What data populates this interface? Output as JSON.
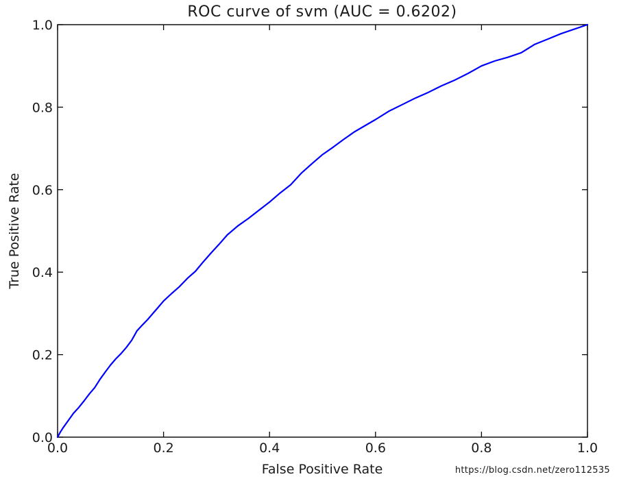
{
  "figure": {
    "title": "ROC curve of svm (AUC = 0.6202)",
    "xlabel": "False Positive Rate",
    "ylabel": "True Positive Rate",
    "watermark": "https://blog.csdn.net/zero112535"
  },
  "colors": {
    "curve": "#0000ff",
    "axis": "#000000",
    "text": "#1a1a1a",
    "watermark": "#e3e3e3",
    "background": "#ffffff"
  },
  "chart_data": {
    "type": "line",
    "title": "ROC curve of svm (AUC = 0.6202)",
    "model": "svm",
    "auc": 0.6202,
    "xlabel": "False Positive Rate",
    "ylabel": "True Positive Rate",
    "xlim": [
      0.0,
      1.0
    ],
    "ylim": [
      0.0,
      1.0
    ],
    "x_ticks": [
      "0.0",
      "0.2",
      "0.4",
      "0.6",
      "0.8",
      "1.0"
    ],
    "y_ticks": [
      "0.0",
      "0.2",
      "0.4",
      "0.6",
      "0.8",
      "1.0"
    ],
    "grid": false,
    "legend": "none",
    "tick_direction": "in",
    "series": [
      {
        "name": "ROC curve of svm",
        "color": "#0000ff",
        "x": [
          0,
          0.005,
          0.01,
          0.02,
          0.03,
          0.04,
          0.05,
          0.06,
          0.07,
          0.08,
          0.09,
          0.1,
          0.11,
          0.12,
          0.13,
          0.14,
          0.15,
          0.16,
          0.17,
          0.18,
          0.19,
          0.2,
          0.215,
          0.23,
          0.245,
          0.26,
          0.275,
          0.29,
          0.305,
          0.32,
          0.34,
          0.36,
          0.38,
          0.4,
          0.42,
          0.44,
          0.46,
          0.48,
          0.5,
          0.52,
          0.54,
          0.56,
          0.58,
          0.6,
          0.625,
          0.65,
          0.675,
          0.7,
          0.725,
          0.75,
          0.775,
          0.8,
          0.825,
          0.85,
          0.875,
          0.9,
          0.925,
          0.95,
          0.975,
          1.0
        ],
        "y": [
          0,
          0.012,
          0.022,
          0.04,
          0.058,
          0.072,
          0.088,
          0.105,
          0.12,
          0.14,
          0.158,
          0.175,
          0.19,
          0.203,
          0.218,
          0.235,
          0.258,
          0.272,
          0.285,
          0.3,
          0.315,
          0.33,
          0.348,
          0.365,
          0.385,
          0.402,
          0.425,
          0.447,
          0.468,
          0.49,
          0.512,
          0.53,
          0.55,
          0.57,
          0.592,
          0.612,
          0.64,
          0.663,
          0.685,
          0.703,
          0.722,
          0.74,
          0.755,
          0.77,
          0.79,
          0.806,
          0.822,
          0.836,
          0.852,
          0.866,
          0.882,
          0.9,
          0.912,
          0.921,
          0.932,
          0.952,
          0.965,
          0.978,
          0.989,
          1.0
        ]
      }
    ]
  }
}
